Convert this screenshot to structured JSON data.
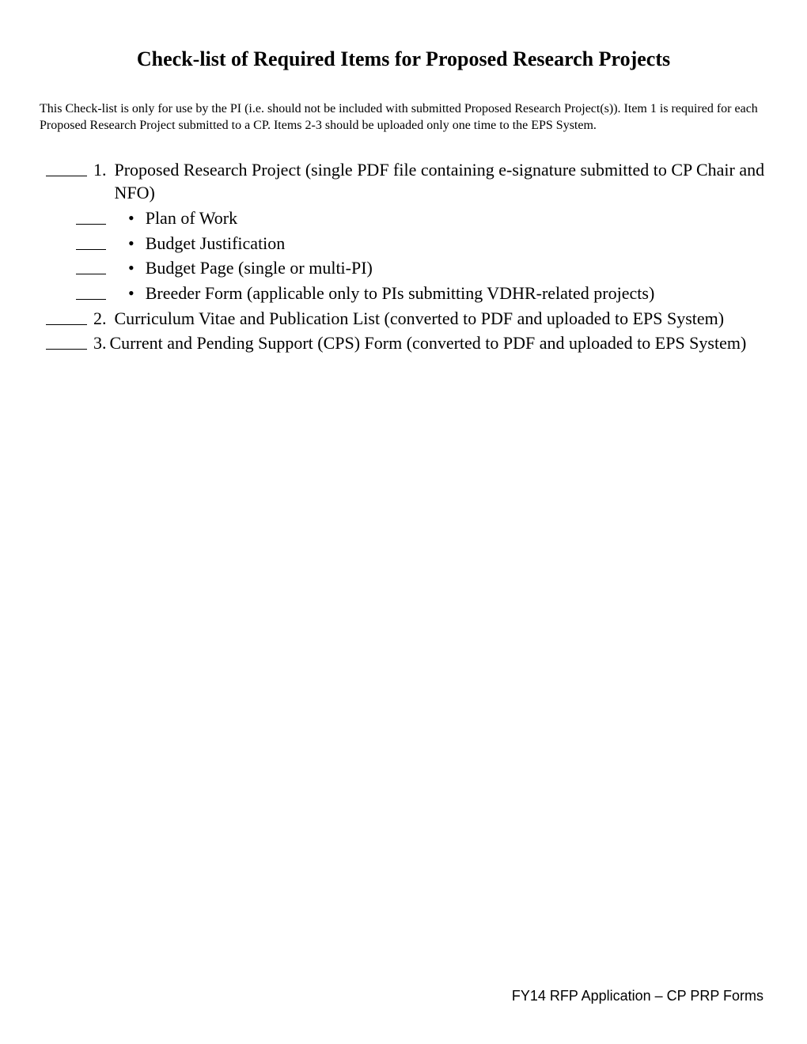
{
  "title": "Check-list of Required Items for Proposed Research Projects",
  "description": "This Check-list is only for use by the PI (i.e. should not be included with submitted Proposed Research Project(s)).  Item 1 is required for each Proposed Research Project submitted to a CP.  Items 2-3 should be uploaded only one time to the EPS System.",
  "items": [
    {
      "num": "1.",
      "text": "Proposed Research Project (single PDF file containing e-signature submitted to CP Chair and NFO)",
      "sub": [
        "Plan of Work",
        "Budget Justification",
        "Budget Page (single or multi-PI)",
        "Breeder Form (applicable only to PIs submitting VDHR-related projects)"
      ]
    },
    {
      "num": "2.",
      "text": "Curriculum Vitae and Publication List (converted to PDF and uploaded to EPS System)"
    },
    {
      "num": "3.",
      "text": "Current and Pending Support (CPS) Form (converted to PDF and uploaded to EPS System)"
    }
  ],
  "footer": "FY14 RFP Application – CP PRP Forms"
}
